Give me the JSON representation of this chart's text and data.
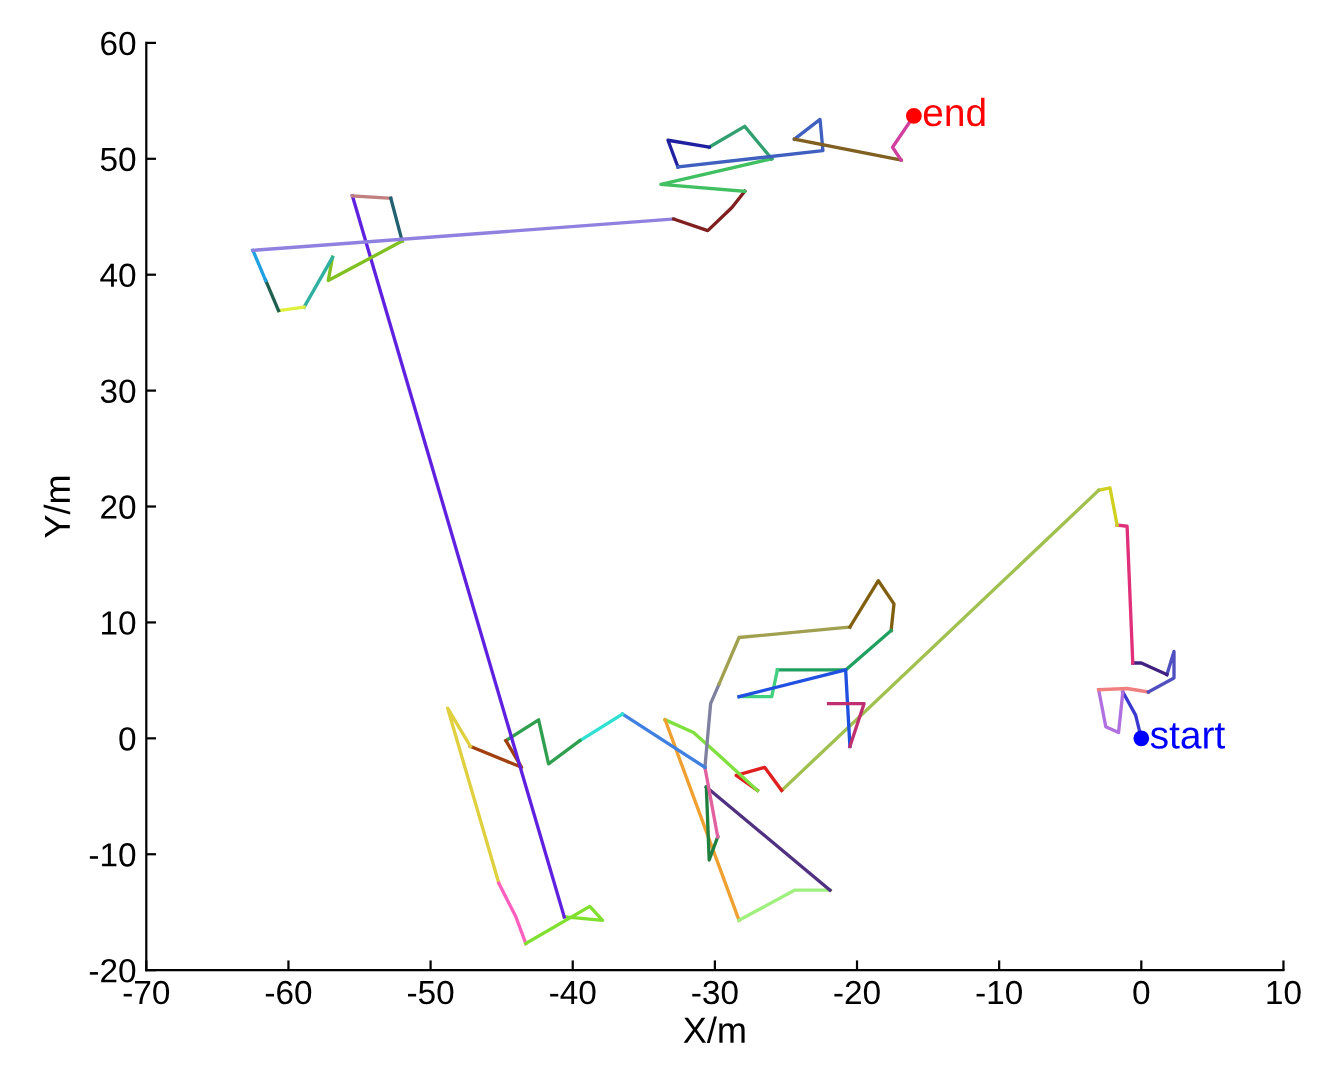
{
  "chart_data": {
    "type": "line",
    "xlabel": "X/m",
    "ylabel": "Y/m",
    "xlim": [
      -70,
      10
    ],
    "xticks": [
      -70,
      -60,
      -50,
      -40,
      -30,
      -20,
      -10,
      0,
      10
    ],
    "ylim": [
      -20,
      60
    ],
    "yticks": [
      -20,
      -10,
      0,
      10,
      20,
      30,
      40,
      50,
      60
    ],
    "grid": false,
    "legend": false,
    "series": [
      {
        "color": "#3a3ad0",
        "x": [
          0,
          -0.4,
          -1.3
        ],
        "values": [
          0,
          2.0,
          4.0
        ]
      },
      {
        "color": "#b070e0",
        "x": [
          -1.3,
          -1.6,
          -2.5,
          -3.0
        ],
        "values": [
          4.0,
          0.5,
          1.0,
          4.2
        ]
      },
      {
        "color": "#f08080",
        "x": [
          -3.0,
          -1.0,
          0.5
        ],
        "values": [
          4.2,
          4.3,
          4.0
        ]
      },
      {
        "color": "#5050c0",
        "x": [
          0.5,
          2.3,
          2.3,
          1.8
        ],
        "values": [
          4.0,
          5.2,
          7.5,
          5.5
        ]
      },
      {
        "color": "#402080",
        "x": [
          1.8,
          0,
          -0.6
        ],
        "values": [
          5.5,
          6.5,
          6.5
        ]
      },
      {
        "color": "#e0307a",
        "x": [
          -0.6,
          -1.0,
          -1.7
        ],
        "values": [
          6.5,
          18.3,
          18.4
        ]
      },
      {
        "color": "#d0d020",
        "x": [
          -1.7,
          -2.2,
          -3.0
        ],
        "values": [
          18.4,
          21.6,
          21.4
        ]
      },
      {
        "color": "#a0c050",
        "x": [
          -3.0,
          -25.3
        ],
        "values": [
          21.4,
          -4.5
        ]
      },
      {
        "color": "#e02020",
        "x": [
          -25.3,
          -26.5,
          -28.5,
          -27.0
        ],
        "values": [
          -4.5,
          -2.5,
          -3.2,
          -4.5
        ]
      },
      {
        "color": "#80e040",
        "x": [
          -27.0,
          -29.5,
          -31.5,
          -33.5
        ],
        "values": [
          -4.5,
          -1.7,
          0.5,
          1.6
        ]
      },
      {
        "color": "#f0a030",
        "x": [
          -33.5,
          -28.3
        ],
        "values": [
          1.6,
          -15.7
        ]
      },
      {
        "color": "#a0f080",
        "x": [
          -28.3,
          -24.4,
          -21.9
        ],
        "values": [
          -15.7,
          -13.1,
          -13.1
        ]
      },
      {
        "color": "#503080",
        "x": [
          -21.9,
          -30.6
        ],
        "values": [
          -13.1,
          -4.2
        ]
      },
      {
        "color": "#208040",
        "x": [
          -30.6,
          -30.4,
          -29.8
        ],
        "values": [
          -4.2,
          -10.5,
          -8.5
        ]
      },
      {
        "color": "#e060a0",
        "x": [
          -29.8,
          -30.7
        ],
        "values": [
          -8.5,
          -2.5
        ]
      },
      {
        "color": "#8080a0",
        "x": [
          -30.7,
          -30.3,
          -29.7
        ],
        "values": [
          -2.5,
          3.0,
          4.7
        ]
      },
      {
        "color": "#a0a050",
        "x": [
          -29.7,
          -28.3,
          -20.5
        ],
        "values": [
          4.7,
          8.7,
          9.6
        ]
      },
      {
        "color": "#806010",
        "x": [
          -20.5,
          -18.5,
          -17.4,
          -17.6
        ],
        "values": [
          9.6,
          13.6,
          11.6,
          9.3
        ]
      },
      {
        "color": "#20a060",
        "x": [
          -17.6,
          -20.8,
          -25.6
        ],
        "values": [
          9.3,
          5.9,
          5.9
        ]
      },
      {
        "color": "#40d080",
        "x": [
          -25.6,
          -26.0,
          -28.3
        ],
        "values": [
          5.9,
          3.6,
          3.6
        ]
      },
      {
        "color": "#2050e0",
        "x": [
          -28.3,
          -20.8,
          -20.5
        ],
        "values": [
          3.6,
          5.9,
          -0.7
        ]
      },
      {
        "color": "#c03070",
        "x": [
          -20.5,
          -19.5,
          -22.0
        ],
        "values": [
          -0.7,
          3.0,
          3.0
        ]
      },
      {
        "color": "#4080e0",
        "x": [
          -30.7,
          -36.5
        ],
        "values": [
          -2.5,
          2.1
        ]
      },
      {
        "color": "#30e0d0",
        "x": [
          -36.5,
          -39.5
        ],
        "values": [
          2.1,
          -0.2
        ]
      },
      {
        "color": "#30a050",
        "x": [
          -39.5,
          -41.7,
          -42.4,
          -44.7
        ],
        "values": [
          -0.2,
          -2.2,
          1.6,
          -0.2
        ]
      },
      {
        "color": "#a04010",
        "x": [
          -44.7,
          -43.6,
          -47.2
        ],
        "values": [
          -0.2,
          -2.5,
          -0.7
        ]
      },
      {
        "color": "#e0d040",
        "x": [
          -47.2,
          -48.8,
          -45.2
        ],
        "values": [
          -0.7,
          2.6,
          -12.5
        ]
      },
      {
        "color": "#ff60c0",
        "x": [
          -45.2,
          -44.0,
          -43.3
        ],
        "values": [
          -12.5,
          -15.4,
          -17.7
        ]
      },
      {
        "color": "#80e030",
        "x": [
          -43.3,
          -38.8,
          -37.9,
          -40.6
        ],
        "values": [
          -17.7,
          -14.5,
          -15.7,
          -15.4
        ]
      },
      {
        "color": "#6020e0",
        "x": [
          -40.6,
          -55.5
        ],
        "values": [
          -15.4,
          46.8
        ]
      },
      {
        "color": "#c08080",
        "x": [
          -55.5,
          -52.8
        ],
        "values": [
          46.8,
          46.6
        ]
      },
      {
        "color": "#206070",
        "x": [
          -52.8,
          -52.0
        ],
        "values": [
          46.6,
          42.9
        ]
      },
      {
        "color": "#80c020",
        "x": [
          -52.0,
          -57.2,
          -56.9
        ],
        "values": [
          42.9,
          39.5,
          41.5
        ]
      },
      {
        "color": "#30b0a0",
        "x": [
          -56.9,
          -58.9
        ],
        "values": [
          41.5,
          37.2
        ]
      },
      {
        "color": "#e0f040",
        "x": [
          -58.9,
          -60.7
        ],
        "values": [
          37.2,
          36.9
        ]
      },
      {
        "color": "#206050",
        "x": [
          -60.7,
          -61.6
        ],
        "values": [
          36.9,
          39.5
        ]
      },
      {
        "color": "#20a0e0",
        "x": [
          -61.6,
          -62.5
        ],
        "values": [
          39.5,
          42.1
        ]
      },
      {
        "color": "#9080e0",
        "x": [
          -62.5,
          -32.9
        ],
        "values": [
          42.1,
          44.8
        ]
      },
      {
        "color": "#802020",
        "x": [
          -32.9,
          -30.5,
          -28.8,
          -27.9
        ],
        "values": [
          44.8,
          43.8,
          45.8,
          47.2
        ]
      },
      {
        "color": "#40c060",
        "x": [
          -27.9,
          -33.8,
          -26.0
        ],
        "values": [
          47.2,
          47.8,
          50.0
        ]
      },
      {
        "color": "#30a070",
        "x": [
          -26.0,
          -27.9,
          -30.4
        ],
        "values": [
          50.0,
          52.8,
          51.0
        ]
      },
      {
        "color": "#2020a0",
        "x": [
          -30.4,
          -33.3,
          -32.6
        ],
        "values": [
          51.0,
          51.6,
          49.3
        ]
      },
      {
        "color": "#4060c0",
        "x": [
          -32.6,
          -22.4,
          -22.6,
          -24.4
        ],
        "values": [
          49.3,
          50.7,
          53.4,
          51.7
        ]
      },
      {
        "color": "#806020",
        "x": [
          -24.4,
          -16.9
        ],
        "values": [
          51.7,
          49.9
        ]
      },
      {
        "color": "#d040a0",
        "x": [
          -16.9,
          -17.5,
          -16.0
        ],
        "values": [
          49.9,
          51.0,
          53.7
        ]
      },
      {
        "type": "scatter",
        "name": "start",
        "color": "#0000ff",
        "marker": "circle",
        "x": [
          0
        ],
        "values": [
          0
        ]
      },
      {
        "type": "scatter",
        "name": "end",
        "color": "#ff0000",
        "marker": "circle",
        "x": [
          -16.0
        ],
        "values": [
          53.7
        ]
      }
    ]
  }
}
